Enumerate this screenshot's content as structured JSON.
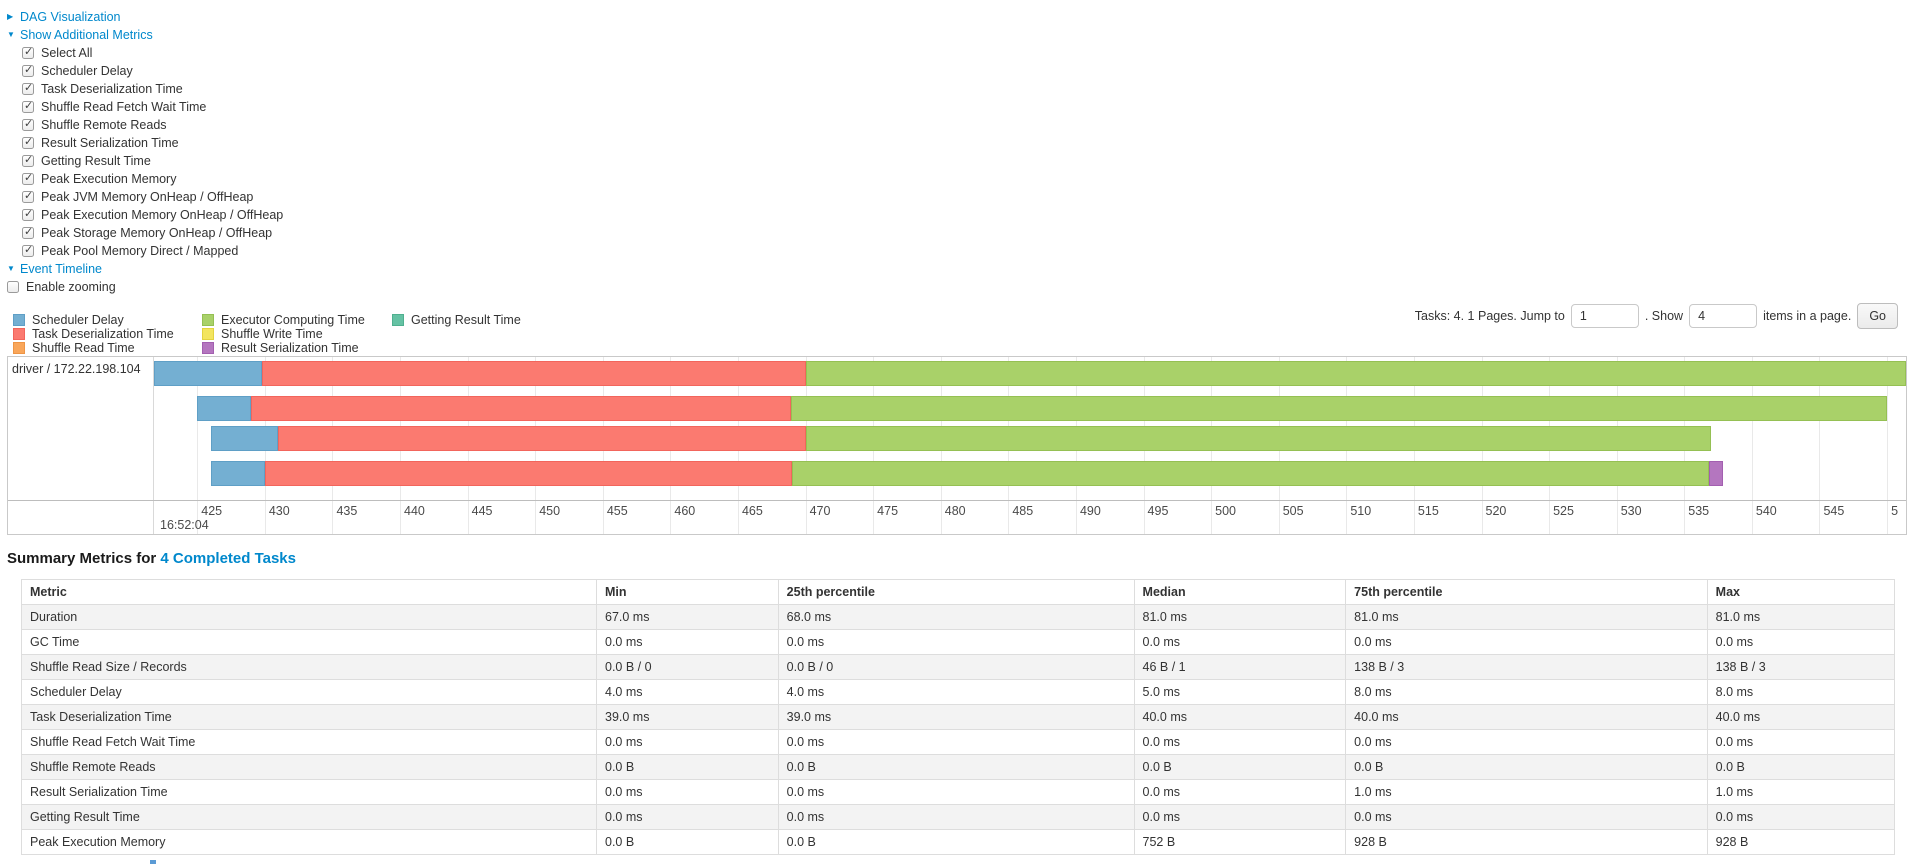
{
  "controls": {
    "dag": {
      "label": "DAG Visualization",
      "state": "collapsed"
    },
    "metrics_toggle": {
      "label": "Show Additional Metrics",
      "state": "expanded"
    },
    "metric_checkboxes": [
      {
        "label": "Select All",
        "checked": true
      },
      {
        "label": "Scheduler Delay",
        "checked": true
      },
      {
        "label": "Task Deserialization Time",
        "checked": true
      },
      {
        "label": "Shuffle Read Fetch Wait Time",
        "checked": true
      },
      {
        "label": "Shuffle Remote Reads",
        "checked": true
      },
      {
        "label": "Result Serialization Time",
        "checked": true
      },
      {
        "label": "Getting Result Time",
        "checked": true
      },
      {
        "label": "Peak Execution Memory",
        "checked": true
      },
      {
        "label": "Peak JVM Memory OnHeap / OffHeap",
        "checked": true
      },
      {
        "label": "Peak Execution Memory OnHeap / OffHeap",
        "checked": true
      },
      {
        "label": "Peak Storage Memory OnHeap / OffHeap",
        "checked": true
      },
      {
        "label": "Peak Pool Memory Direct / Mapped",
        "checked": true
      }
    ],
    "event_timeline": {
      "label": "Event Timeline",
      "state": "expanded"
    },
    "enable_zooming": {
      "label": "Enable zooming",
      "checked": false
    }
  },
  "palette": {
    "scheduler_delay": {
      "fill": "#74AFD2",
      "border": "#5F9FC6"
    },
    "task_deserialization_time": {
      "fill": "#FB7A70",
      "border": "#F2655C"
    },
    "shuffle_read_time": {
      "fill": "#F9A65A",
      "border": "#EE9545"
    },
    "executor_computing_time": {
      "fill": "#A9D169",
      "border": "#95C053"
    },
    "shuffle_write_time": {
      "fill": "#F3E55F",
      "border": "#E3D340"
    },
    "result_serialization_time": {
      "fill": "#B476BF",
      "border": "#A35FB0"
    },
    "getting_result_time": {
      "fill": "#65C2A4",
      "border": "#4FB08F"
    }
  },
  "legend": {
    "columns": [
      [
        {
          "metric": "scheduler_delay",
          "label": "Scheduler Delay"
        },
        {
          "metric": "task_deserialization_time",
          "label": "Task Deserialization Time"
        },
        {
          "metric": "shuffle_read_time",
          "label": "Shuffle Read Time"
        }
      ],
      [
        {
          "metric": "executor_computing_time",
          "label": "Executor Computing Time"
        },
        {
          "metric": "shuffle_write_time",
          "label": "Shuffle Write Time"
        },
        {
          "metric": "result_serialization_time",
          "label": "Result Serialization Time"
        }
      ],
      [
        {
          "metric": "getting_result_time",
          "label": "Getting Result Time"
        }
      ]
    ]
  },
  "pagination": {
    "summary": "Tasks: 4. 1 Pages. Jump to",
    "jump_value": "1",
    "show_label": ". Show",
    "page_size_value": "4",
    "suffix": "items in a page.",
    "go_label": "Go"
  },
  "chart_data": {
    "type": "timeline",
    "group_label": "driver / 172.22.198.104",
    "axis": {
      "min": 421.8,
      "max": 551.4,
      "minor_ticks": [
        425,
        430,
        435,
        440,
        445,
        450,
        455,
        460,
        465,
        470,
        475,
        480,
        485,
        490,
        495,
        500,
        505,
        510,
        515,
        520,
        525,
        530,
        535,
        540,
        545
      ],
      "partial_tick_value": 550,
      "partial_tick_label": "5",
      "major_label": "16:52:04",
      "units": "ms after 16:52:04"
    },
    "tasks": [
      {
        "segments": [
          {
            "metric": "scheduler_delay",
            "start": 421.8,
            "end": 429.8
          },
          {
            "metric": "task_deserialization_time",
            "start": 429.8,
            "end": 470.0
          },
          {
            "metric": "executor_computing_time",
            "start": 470.0,
            "end": 551.4
          }
        ]
      },
      {
        "segments": [
          {
            "metric": "scheduler_delay",
            "start": 425.0,
            "end": 429.0
          },
          {
            "metric": "task_deserialization_time",
            "start": 429.0,
            "end": 468.9
          },
          {
            "metric": "executor_computing_time",
            "start": 468.9,
            "end": 550.0
          }
        ]
      },
      {
        "segments": [
          {
            "metric": "scheduler_delay",
            "start": 426.0,
            "end": 431.0
          },
          {
            "metric": "task_deserialization_time",
            "start": 431.0,
            "end": 470.0
          },
          {
            "metric": "executor_computing_time",
            "start": 470.0,
            "end": 537.0
          }
        ]
      },
      {
        "segments": [
          {
            "metric": "scheduler_delay",
            "start": 426.0,
            "end": 430.0
          },
          {
            "metric": "task_deserialization_time",
            "start": 430.0,
            "end": 469.0
          },
          {
            "metric": "executor_computing_time",
            "start": 469.0,
            "end": 536.8
          },
          {
            "metric": "result_serialization_time",
            "start": 536.8,
            "end": 537.9
          }
        ]
      }
    ]
  },
  "summary": {
    "title_prefix": "Summary Metrics for",
    "title_link": "4 Completed Tasks",
    "table": {
      "headers": [
        "Metric",
        "Min",
        "25th percentile",
        "Median",
        "75th percentile",
        "Max"
      ],
      "rows": [
        [
          "Duration",
          "67.0 ms",
          "68.0 ms",
          "81.0 ms",
          "81.0 ms",
          "81.0 ms"
        ],
        [
          "GC Time",
          "0.0 ms",
          "0.0 ms",
          "0.0 ms",
          "0.0 ms",
          "0.0 ms"
        ],
        [
          "Shuffle Read Size / Records",
          "0.0 B / 0",
          "0.0 B / 0",
          "46 B / 1",
          "138 B / 3",
          "138 B / 3"
        ],
        [
          "Scheduler Delay",
          "4.0 ms",
          "4.0 ms",
          "5.0 ms",
          "8.0 ms",
          "8.0 ms"
        ],
        [
          "Task Deserialization Time",
          "39.0 ms",
          "39.0 ms",
          "40.0 ms",
          "40.0 ms",
          "40.0 ms"
        ],
        [
          "Shuffle Read Fetch Wait Time",
          "0.0 ms",
          "0.0 ms",
          "0.0 ms",
          "0.0 ms",
          "0.0 ms"
        ],
        [
          "Shuffle Remote Reads",
          "0.0 B",
          "0.0 B",
          "0.0 B",
          "0.0 B",
          "0.0 B"
        ],
        [
          "Result Serialization Time",
          "0.0 ms",
          "0.0 ms",
          "0.0 ms",
          "1.0 ms",
          "1.0 ms"
        ],
        [
          "Getting Result Time",
          "0.0 ms",
          "0.0 ms",
          "0.0 ms",
          "0.0 ms",
          "0.0 ms"
        ],
        [
          "Peak Execution Memory",
          "0.0 B",
          "0.0 B",
          "752 B",
          "928 B",
          "928 B"
        ]
      ]
    }
  }
}
